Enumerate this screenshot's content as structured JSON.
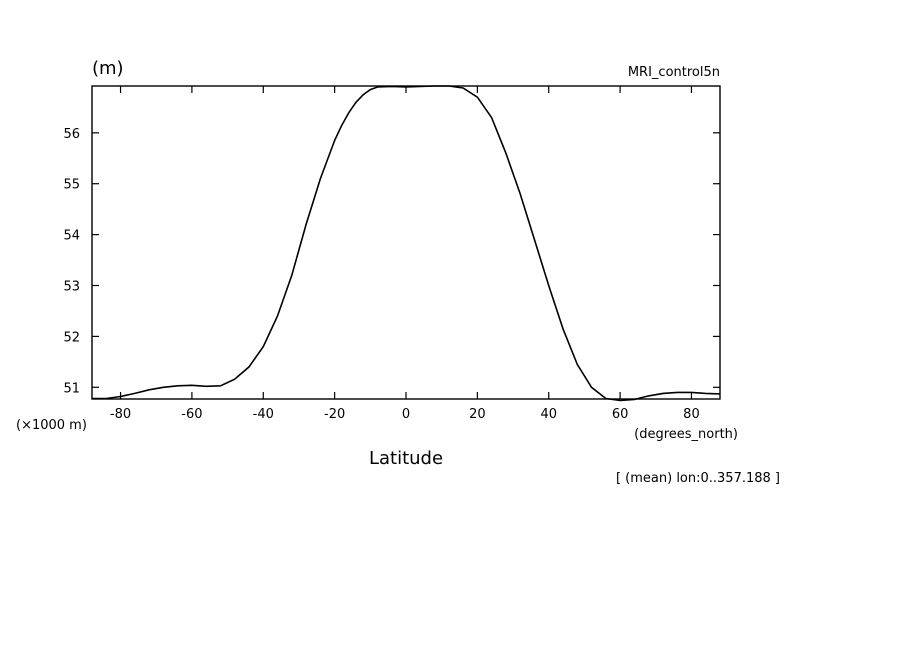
{
  "chart_data": {
    "type": "line",
    "title": "",
    "dataset_label": "MRI_control5n",
    "unit_label": "(m)",
    "scale_label": "(×1000 m)",
    "xlabel": "Latitude",
    "x_unit_label": "(degrees_north)",
    "annotation": "[ (mean) lon:0..357.188 ]",
    "xlim": [
      -88,
      88
    ],
    "ylim": [
      50.77,
      56.92
    ],
    "xticks": [
      -80,
      -60,
      -40,
      -20,
      0,
      20,
      40,
      60,
      80
    ],
    "xtick_labels": [
      "-80",
      "-60",
      "-40",
      "-20",
      "0",
      "20",
      "40",
      "60",
      "80"
    ],
    "yticks": [
      51,
      52,
      53,
      54,
      55,
      56
    ],
    "ytick_labels": [
      "51",
      "52",
      "53",
      "54",
      "55",
      "56"
    ],
    "grid": false,
    "series": [
      {
        "x": [
          -88,
          -84,
          -80,
          -76,
          -72,
          -68,
          -64,
          -60,
          -56,
          -52,
          -48,
          -44,
          -40,
          -36,
          -32,
          -28,
          -24,
          -20,
          -18,
          -16,
          -14,
          -12,
          -10,
          -8,
          -4,
          0,
          4,
          8,
          12,
          16,
          20,
          24,
          28,
          32,
          36,
          40,
          44,
          48,
          52,
          56,
          60,
          64,
          68,
          72,
          76,
          80,
          84,
          88
        ],
        "y": [
          50.78,
          50.78,
          50.82,
          50.88,
          50.95,
          51.0,
          51.03,
          51.04,
          51.02,
          51.03,
          51.16,
          51.4,
          51.8,
          52.4,
          53.2,
          54.2,
          55.1,
          55.85,
          56.15,
          56.4,
          56.6,
          56.75,
          56.85,
          56.9,
          56.91,
          56.9,
          56.91,
          56.92,
          56.92,
          56.88,
          56.7,
          56.3,
          55.6,
          54.8,
          53.9,
          53.0,
          52.15,
          51.45,
          51.0,
          50.78,
          50.74,
          50.76,
          50.83,
          50.88,
          50.9,
          50.9,
          50.88,
          50.87
        ]
      }
    ]
  }
}
